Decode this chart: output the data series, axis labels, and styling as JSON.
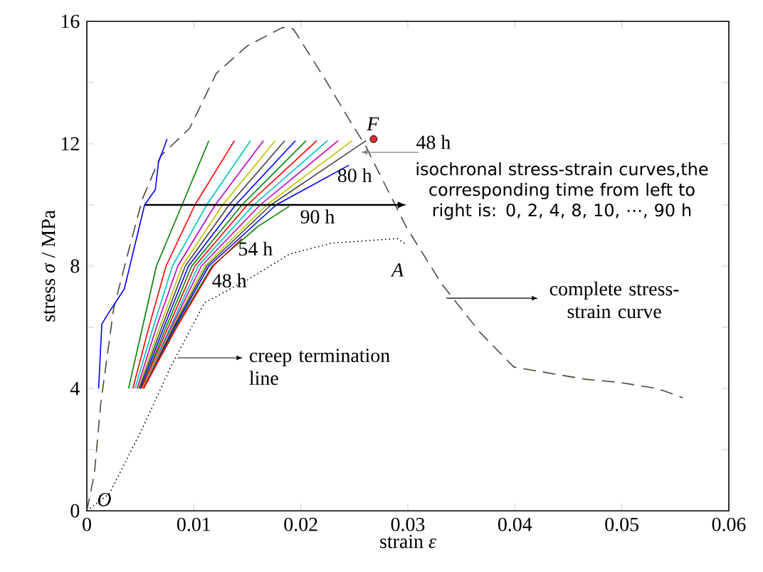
{
  "chart_data": {
    "type": "line",
    "xlabel": "strain *ε*",
    "ylabel": "stress *σ* / MPa",
    "xlim": [
      0,
      0.06
    ],
    "ylim": [
      0,
      16
    ],
    "xticks": [
      0,
      0.01,
      0.02,
      0.03,
      0.04,
      0.05,
      0.06
    ],
    "yticks": [
      0,
      {
        "value": 2,
        "label": null
      },
      4,
      {
        "value": 6,
        "label": null
      },
      8,
      {
        "value": 10,
        "label": null
      },
      12,
      {
        "value": 14,
        "label": null
      },
      16
    ],
    "grid": false,
    "marker": "none",
    "series": [
      {
        "line_style": "dashed",
        "color": "#4a4a38",
        "x": [
          0,
          0.0007,
          0.0013,
          0.0025,
          0.0039,
          0.0052,
          0.0069,
          0.0096,
          0.0121,
          0.015,
          0.0183,
          0.0193,
          0.0221,
          0.0245,
          0.0261,
          0.0268,
          0.0299,
          0.0332,
          0.0367,
          0.0399,
          0.0466,
          0.0497,
          0.0533,
          0.0557
        ],
        "values": [
          0,
          1.2,
          3.5,
          6.6,
          8.5,
          10.2,
          11.6,
          12.5,
          14.3,
          15.2,
          15.8,
          15.75,
          14.2,
          12.8,
          11.9,
          11.4,
          9.25,
          7.4,
          5.85,
          4.7,
          4.3,
          4.2,
          4.0,
          3.7
        ]
      },
      {
        "line_style": "dotted",
        "color": "#000000",
        "x": [
          0,
          0.0021,
          0.0052,
          0.0079,
          0.011,
          0.015,
          0.019,
          0.0229,
          0.029,
          0.0299
        ],
        "values": [
          0,
          0.56,
          2.7,
          4.75,
          6.8,
          7.55,
          8.4,
          8.75,
          8.9,
          8.7
        ]
      },
      {
        "type": "line",
        "line_style": "solid",
        "color": "#0000ff",
        "x": [
          0.0011,
          0.0014,
          0.002,
          0.0035,
          0.0054,
          0.0064,
          0.0067,
          0.0075
        ],
        "values": [
          4,
          6.1,
          6.45,
          7.25,
          10,
          10.5,
          11.4,
          12.15
        ]
      },
      {
        "type": "line",
        "line_style": "solid",
        "color": "#008000",
        "x": [
          0.0039,
          0.0052,
          0.0065,
          0.0089,
          0.0114
        ],
        "values": [
          4,
          6,
          8,
          10,
          12.1
        ]
      },
      {
        "type": "line",
        "line_style": "solid",
        "color": "#ff0000",
        "x": [
          0.0043,
          0.0058,
          0.0074,
          0.0101,
          0.0138
        ],
        "values": [
          4,
          6,
          8,
          10,
          12.1
        ]
      },
      {
        "type": "line",
        "line_style": "solid",
        "color": "#00bfbf",
        "x": [
          0.0045,
          0.0062,
          0.008,
          0.0112,
          0.0153
        ],
        "values": [
          4,
          6,
          8,
          10,
          12.1
        ]
      },
      {
        "type": "line",
        "line_style": "solid",
        "color": "#bf00bf",
        "x": [
          0.0047,
          0.0065,
          0.0085,
          0.012,
          0.0165
        ],
        "values": [
          4,
          6,
          8,
          10,
          12.1
        ]
      },
      {
        "type": "line",
        "line_style": "solid",
        "color": "#bfbf00",
        "x": [
          0.0048,
          0.0068,
          0.0089,
          0.0127,
          0.0176
        ],
        "values": [
          4,
          6,
          8,
          10,
          12.1
        ]
      },
      {
        "type": "line",
        "line_style": "solid",
        "color": "#404040",
        "x": [
          0.0049,
          0.007,
          0.0092,
          0.0133,
          0.0185
        ],
        "values": [
          4,
          6,
          8,
          10,
          12.1
        ]
      },
      {
        "type": "line",
        "line_style": "solid",
        "color": "#0000ff",
        "x": [
          0.005,
          0.0072,
          0.0095,
          0.0139,
          0.0195
        ],
        "values": [
          4,
          6,
          8,
          10,
          12.1
        ]
      },
      {
        "type": "line",
        "line_style": "solid",
        "color": "#008000",
        "x": [
          0.0051,
          0.0074,
          0.0098,
          0.0145,
          0.0205
        ],
        "values": [
          4,
          6,
          8,
          10,
          12.1
        ]
      },
      {
        "type": "line",
        "line_style": "solid",
        "color": "#ff0000",
        "x": [
          0.0051,
          0.0076,
          0.0101,
          0.015,
          0.0215
        ],
        "values": [
          4,
          6,
          8,
          10,
          12.1
        ]
      },
      {
        "type": "line",
        "line_style": "solid",
        "color": "#00bfbf",
        "x": [
          0.0052,
          0.0078,
          0.0104,
          0.0156,
          0.0225
        ],
        "values": [
          4,
          6,
          8,
          10,
          12.1
        ]
      },
      {
        "type": "line",
        "line_style": "solid",
        "color": "#bf00bf",
        "x": [
          0.0052,
          0.0079,
          0.0107,
          0.0162,
          0.0235
        ],
        "values": [
          4,
          6,
          8,
          10,
          12.1
        ]
      },
      {
        "type": "line",
        "line_style": "solid",
        "color": "#bfbf00",
        "x": [
          0.0052,
          0.008,
          0.011,
          0.0168,
          0.0248
        ],
        "values": [
          4,
          6,
          8,
          10,
          12.1
        ]
      },
      {
        "type": "line",
        "line_style": "solid",
        "color": "#404040",
        "x": [
          0.0053,
          0.0081,
          0.0112,
          0.0172,
          0.0261
        ],
        "values": [
          4,
          6,
          8,
          10,
          12.1
        ]
      },
      {
        "type": "line",
        "line_style": "solid",
        "color": "#0000ff",
        "x": [
          0.0053,
          0.0082,
          0.0114,
          0.0177,
          0.0245
        ],
        "values": [
          4,
          6,
          8,
          10,
          11.3
        ]
      },
      {
        "type": "line",
        "line_style": "solid",
        "color": "#008000",
        "x": [
          0.0053,
          0.0083,
          0.0117,
          0.016,
          0.0189
        ],
        "values": [
          4,
          6,
          8,
          9.3,
          9.95
        ]
      },
      {
        "type": "line",
        "line_style": "solid",
        "color": "#ff0000",
        "x": [
          0.0053,
          0.0084,
          0.0118,
          0.0145
        ],
        "values": [
          4,
          6,
          8,
          8.9
        ]
      },
      {
        "type": "scatter",
        "marker": "circle",
        "color": "#e03030",
        "x": [
          0.0268
        ],
        "values": [
          12.15
        ]
      }
    ],
    "annotations": [
      {
        "text": "F",
        "x": 0.0268,
        "y": 12.15
      },
      {
        "text": "O",
        "x": 0.0,
        "y": 0.0
      },
      {
        "text": "A",
        "x": 0.0299,
        "y": 8.7
      },
      {
        "text": "48 h",
        "x": 0.0261,
        "y": 12.1
      },
      {
        "text": "80 h",
        "x": 0.0245,
        "y": 11.3
      },
      {
        "text": "90 h",
        "x": 0.0189,
        "y": 9.95
      },
      {
        "text": "54 h",
        "x": 0.0145,
        "y": 8.9
      },
      {
        "text": "48 h",
        "x": 0.0118,
        "y": 8.0
      },
      "isochronal stress-strain curves,the corresponding time from left to right is: 0, 2, 4, 8, 10, ⋯, 90 h",
      "creep termination line",
      "complete stress-strain curve"
    ]
  }
}
